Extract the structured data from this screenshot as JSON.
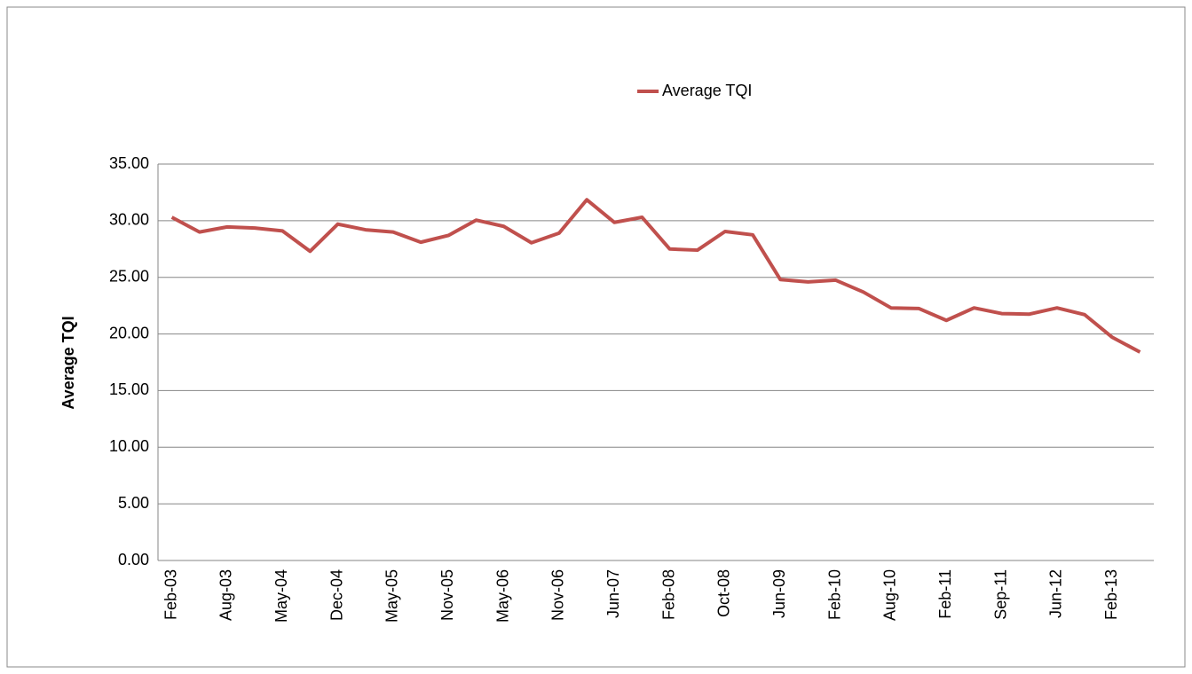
{
  "chart_data": {
    "type": "line",
    "y_label": "Average TQI",
    "categories": [
      "Feb-03",
      null,
      "Aug-03",
      null,
      "May-04",
      null,
      "Dec-04",
      null,
      "May-05",
      null,
      "Nov-05",
      null,
      "May-06",
      null,
      "Nov-06",
      null,
      "Jun-07",
      null,
      "Feb-08",
      null,
      "Oct-08",
      null,
      "Jun-09",
      null,
      "Feb-10",
      null,
      "Aug-10",
      null,
      "Feb-11",
      null,
      "Sep-11",
      null,
      "Jun-12",
      null,
      "Feb-13",
      null
    ],
    "series": [
      {
        "name": "Average TQI",
        "color": "#c0504d",
        "values": [
          30.3,
          29.0,
          29.45,
          29.35,
          29.1,
          27.3,
          29.7,
          29.2,
          29.0,
          28.1,
          28.7,
          30.05,
          29.5,
          28.05,
          28.9,
          31.85,
          29.85,
          30.3,
          27.5,
          27.4,
          29.05,
          28.75,
          24.8,
          24.6,
          24.75,
          23.7,
          22.3,
          22.25,
          21.2,
          22.3,
          21.8,
          21.75,
          22.3,
          21.7,
          19.7,
          18.4
        ]
      }
    ],
    "ylim": [
      0,
      35
    ],
    "yticks": [
      {
        "value": 0,
        "label": "0.00"
      },
      {
        "value": 5,
        "label": "5.00"
      },
      {
        "value": 10,
        "label": "10.00"
      },
      {
        "value": 15,
        "label": "15.00"
      },
      {
        "value": 20,
        "label": "20.00"
      },
      {
        "value": 25,
        "label": "25.00"
      },
      {
        "value": 30,
        "label": "30.00"
      },
      {
        "value": 35,
        "label": "35.00"
      }
    ],
    "grid": true
  }
}
